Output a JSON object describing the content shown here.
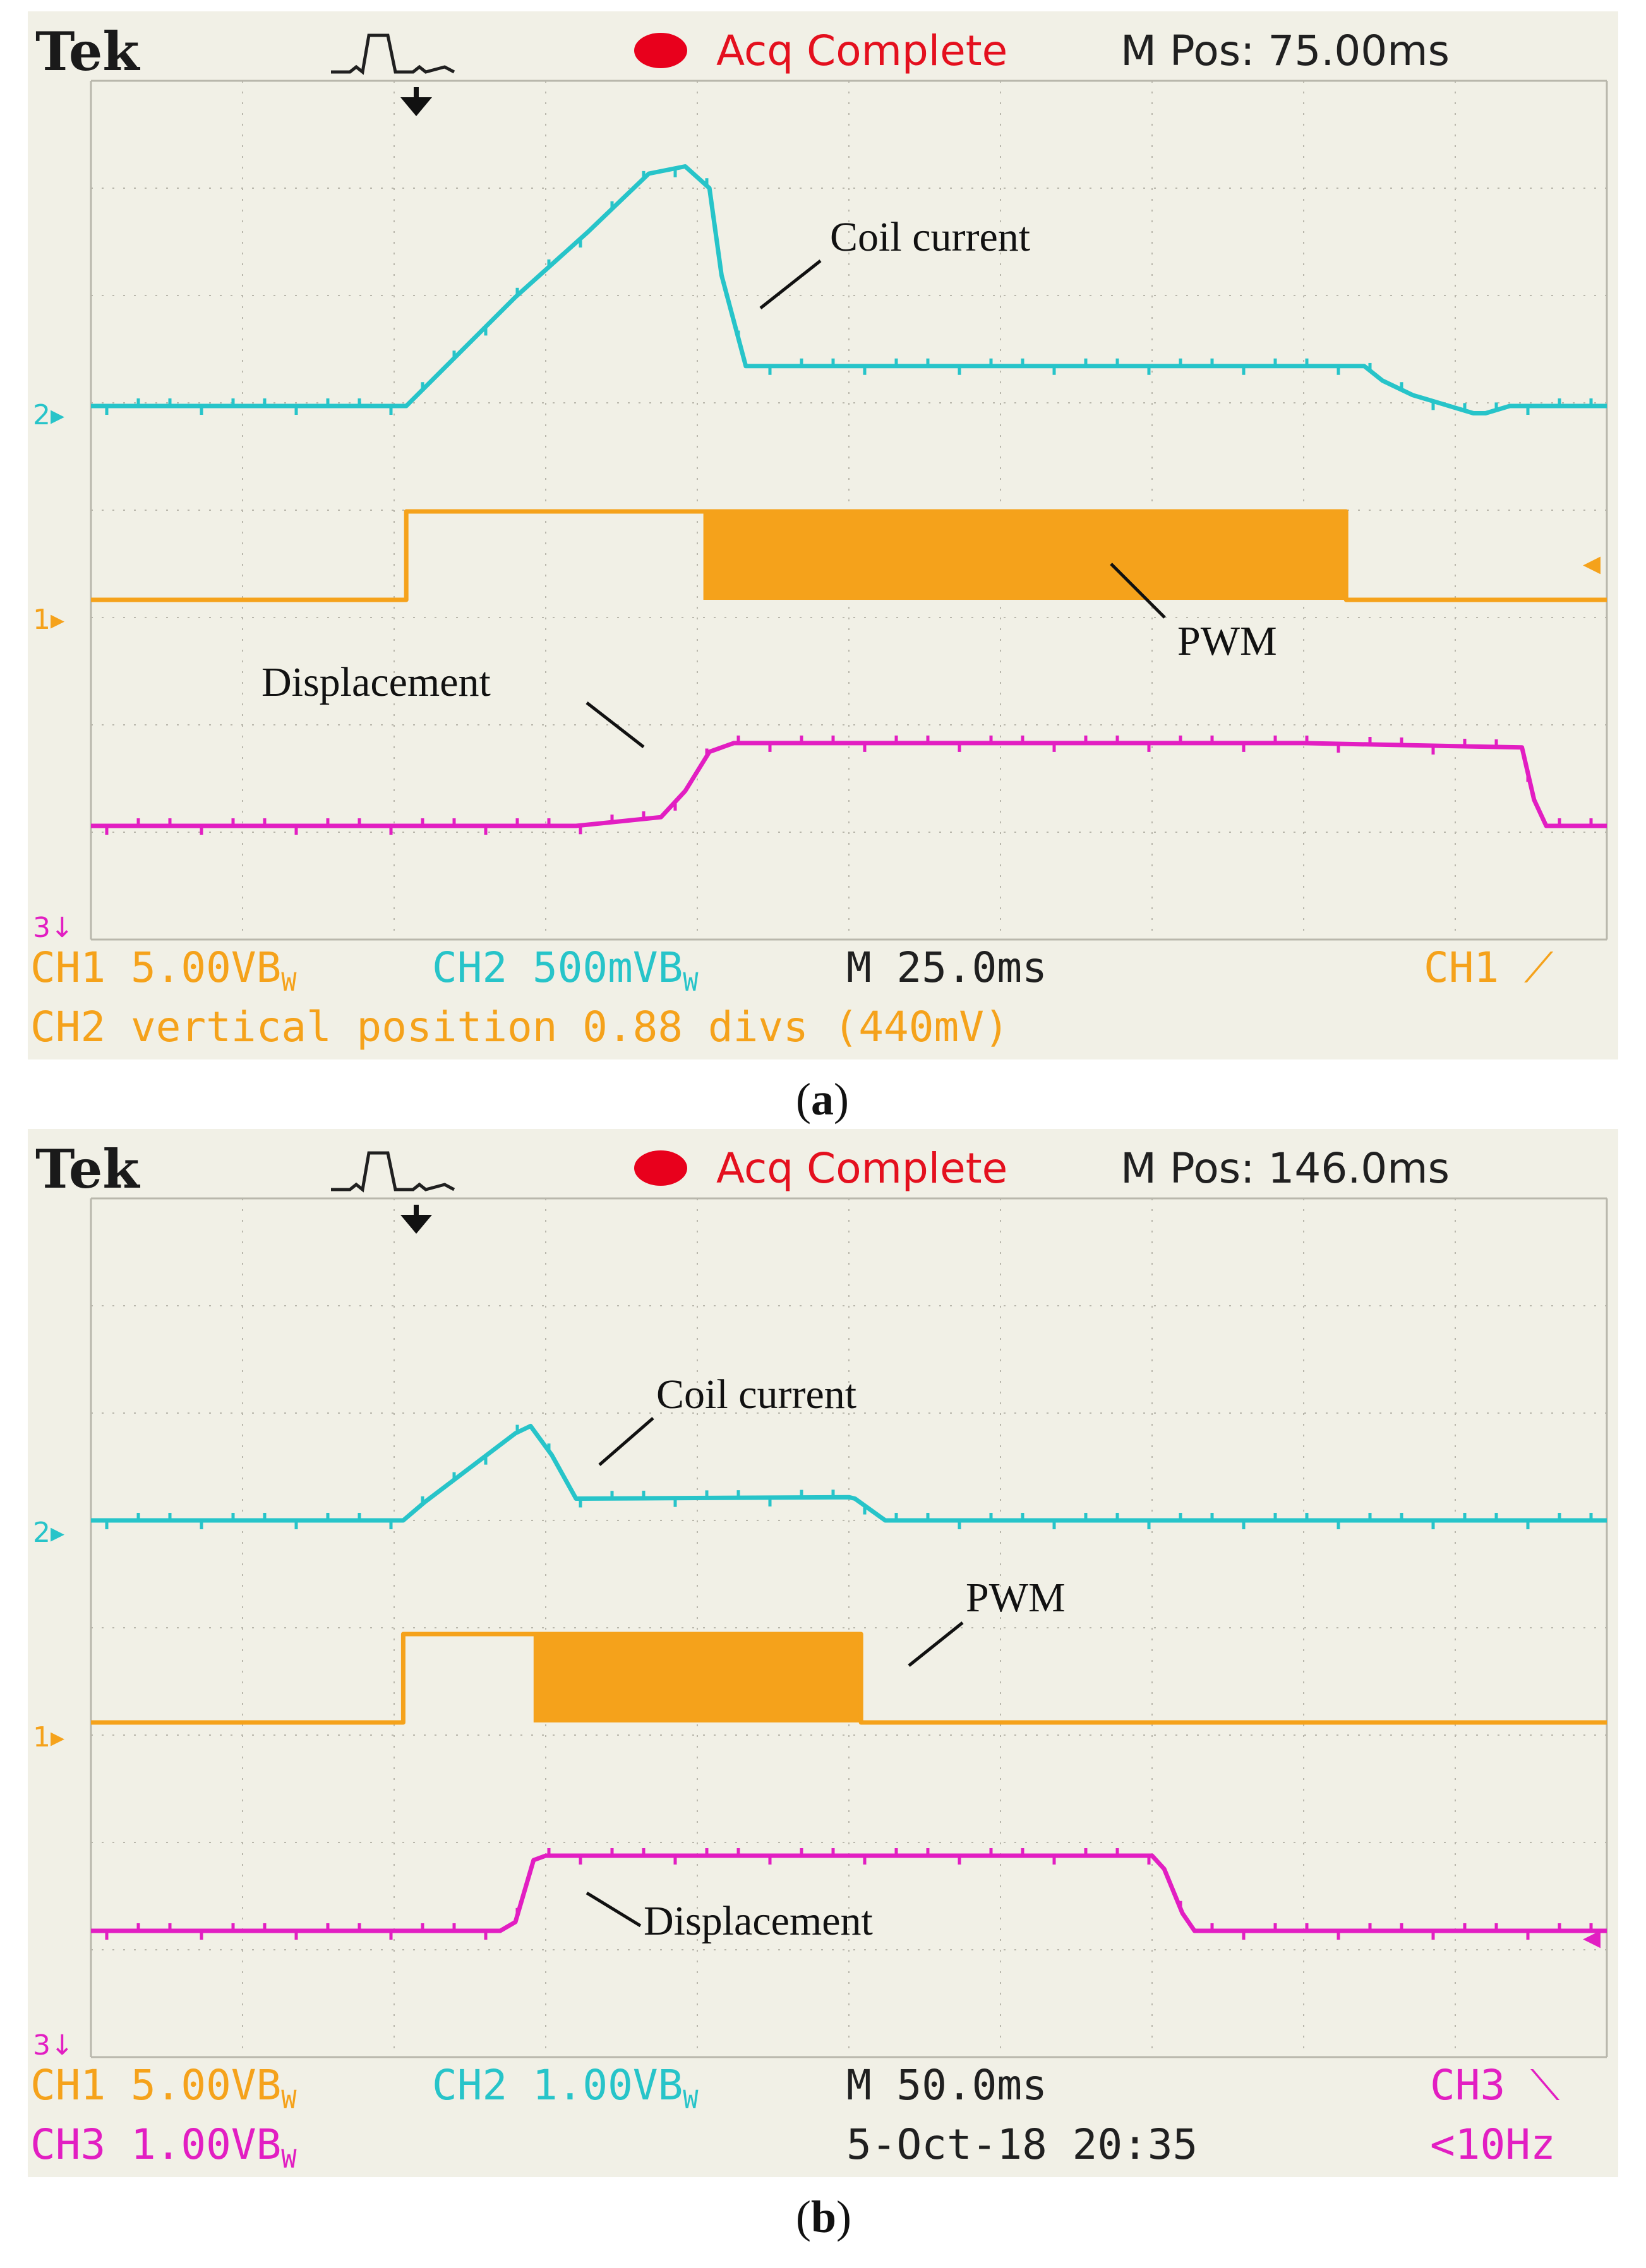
{
  "colors": {
    "screen": "#f1f0e6",
    "grid": "#b9b7ac",
    "ch1": "#f5a21b",
    "ch2": "#27c4c9",
    "ch3": "#e21ec2",
    "acq_dot": "#e8001c"
  },
  "panels": [
    {
      "id": "a",
      "caption_letter": "a",
      "header": {
        "brand": "Tek",
        "trigger_icon": "pulse-trigger-icon",
        "status": "Acq Complete",
        "mpos": "M Pos: 75.00ms"
      },
      "footer": {
        "row1": {
          "ch1": "CH1  5.00V",
          "ch1_bw": "B",
          "ch1_w": "W",
          "ch2": "CH2  500mV",
          "ch2_bw": "B",
          "ch2_w": "W",
          "time": "M 25.0ms",
          "trigger": "CH1"
        },
        "row2": {
          "text": "CH2 vertical position 0.88 divs (440mV)"
        }
      },
      "markers": {
        "ch2": "2",
        "ch1": "1",
        "ch3": "3"
      },
      "annotations": {
        "coil": "Coil current",
        "pwm": "PWM",
        "disp": "Displacement"
      }
    },
    {
      "id": "b",
      "caption_letter": "b",
      "header": {
        "brand": "Tek",
        "trigger_icon": "pulse-trigger-icon",
        "status": "Acq Complete",
        "mpos": "M Pos: 146.0ms"
      },
      "footer": {
        "row1": {
          "ch1": "CH1  5.00V",
          "ch1_bw": "B",
          "ch1_w": "W",
          "ch2": "CH2  1.00V",
          "ch2_bw": "B",
          "ch2_w": "W",
          "time": "M 50.0ms",
          "trigger": "CH3"
        },
        "row2": {
          "ch3": "CH3  1.00V",
          "ch3_bw": "B",
          "ch3_w": "W",
          "date": "5-Oct-18 20:35",
          "freq": "<10Hz"
        }
      },
      "markers": {
        "ch2": "2",
        "ch1": "1",
        "ch3": "3"
      },
      "annotations": {
        "coil": "Coil current",
        "pwm": "PWM",
        "disp": "Displacement"
      }
    }
  ],
  "chart_data": [
    {
      "type": "line",
      "panel": "a",
      "x_unit": "ms",
      "x_range": [
        0,
        250
      ],
      "series": [
        {
          "name": "Coil current",
          "channel": "CH2",
          "x": [
            0,
            52,
            58,
            70,
            82,
            92,
            98,
            102,
            104,
            108,
            160,
            210,
            213,
            218,
            220,
            228,
            230,
            234,
            237,
            240,
            250
          ],
          "y": [
            0,
            0,
            0.5,
            1.5,
            2.4,
            3.2,
            3.3,
            3.0,
            1.8,
            0.55,
            0.55,
            0.55,
            0.35,
            0.15,
            0.1,
            -0.1,
            -0.1,
            0.0,
            0.0,
            0.0,
            0.0
          ]
        },
        {
          "name": "PWM",
          "channel": "CH1",
          "x": [
            0,
            52,
            52,
            101,
            101,
            207,
            207,
            250
          ],
          "y": [
            0,
            0,
            1,
            1,
            1,
            1,
            0,
            0
          ],
          "pwm_band_x": [
            101,
            207
          ]
        },
        {
          "name": "Displacement",
          "channel": "CH3",
          "x": [
            0,
            80,
            94,
            98,
            102,
            106,
            200,
            236,
            238,
            240,
            250
          ],
          "y": [
            0,
            0,
            0.1,
            0.4,
            0.85,
            0.95,
            0.95,
            0.9,
            0.3,
            0,
            0
          ]
        }
      ]
    },
    {
      "type": "line",
      "panel": "b",
      "x_unit": "ms",
      "x_range": [
        0,
        500
      ],
      "series": [
        {
          "name": "Coil current",
          "channel": "CH2",
          "x": [
            0,
            103,
            110,
            140,
            145,
            152,
            160,
            250,
            252,
            262,
            266,
            500
          ],
          "y": [
            0,
            0,
            0.25,
            1.2,
            1.3,
            0.9,
            0.3,
            0.32,
            0.3,
            0,
            0,
            0
          ]
        },
        {
          "name": "PWM",
          "channel": "CH1",
          "x": [
            0,
            103,
            103,
            146,
            146,
            254,
            254,
            500
          ],
          "y": [
            0,
            0,
            1,
            1,
            1,
            1,
            0,
            0
          ],
          "pwm_band_x": [
            146,
            254
          ]
        },
        {
          "name": "Displacement",
          "channel": "CH3",
          "x": [
            0,
            135,
            140,
            146,
            150,
            350,
            354,
            360,
            364,
            500
          ],
          "y": [
            0,
            0,
            0.1,
            0.8,
            0.85,
            0.85,
            0.7,
            0.2,
            0,
            0
          ]
        }
      ]
    }
  ]
}
